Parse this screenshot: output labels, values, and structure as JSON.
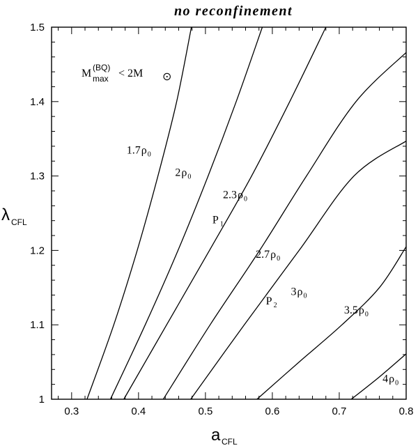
{
  "chart_data": {
    "type": "line",
    "title": "no reconfinement",
    "xlabel": {
      "main": "a",
      "sub": "CFL"
    },
    "ylabel": {
      "main": "λ",
      "sub": "CFL"
    },
    "xlim": [
      0.27,
      0.8
    ],
    "ylim": [
      1.0,
      1.5
    ],
    "xticks": [
      "0.3",
      "0.4",
      "0.5",
      "0.6",
      "0.7",
      "0.8"
    ],
    "yticks": [
      "1",
      "1.1",
      "1.2",
      "1.3",
      "1.4",
      "1.5"
    ],
    "grid": false,
    "legend": "none",
    "series": [
      {
        "label": {
          "coef": "1.7",
          "x": 0.403,
          "y": 1.33
        },
        "points": [
          [
            0.323,
            1.0
          ],
          [
            0.363,
            1.1
          ],
          [
            0.398,
            1.2
          ],
          [
            0.429,
            1.3
          ],
          [
            0.457,
            1.4
          ],
          [
            0.479,
            1.5
          ]
        ]
      },
      {
        "label": {
          "coef": "2",
          "x": 0.463,
          "y": 1.3
        },
        "points": [
          [
            0.358,
            1.0
          ],
          [
            0.41,
            1.1
          ],
          [
            0.459,
            1.2
          ],
          [
            0.504,
            1.3
          ],
          [
            0.546,
            1.4
          ],
          [
            0.585,
            1.5
          ]
        ]
      },
      {
        "label": {
          "coef": "2.3",
          "x": 0.547,
          "y": 1.27
        },
        "points": [
          [
            0.378,
            1.0
          ],
          [
            0.442,
            1.1
          ],
          [
            0.506,
            1.2
          ],
          [
            0.569,
            1.3
          ],
          [
            0.626,
            1.4
          ],
          [
            0.68,
            1.5
          ]
        ]
      },
      {
        "label": {
          "coef": "2.7",
          "x": 0.596,
          "y": 1.19
        },
        "points": [
          [
            0.437,
            1.0
          ],
          [
            0.507,
            1.1
          ],
          [
            0.581,
            1.2
          ],
          [
            0.651,
            1.3
          ],
          [
            0.725,
            1.4
          ],
          [
            0.8,
            1.466
          ]
        ]
      },
      {
        "label": {
          "coef": "3",
          "x": 0.636,
          "y": 1.14
        },
        "points": [
          [
            0.478,
            1.0
          ],
          [
            0.558,
            1.1
          ],
          [
            0.64,
            1.2
          ],
          [
            0.722,
            1.3
          ],
          [
            0.8,
            1.347
          ]
        ]
      },
      {
        "label": {
          "coef": "3.5",
          "x": 0.728,
          "y": 1.115
        },
        "points": [
          [
            0.577,
            1.0
          ],
          [
            0.64,
            1.05
          ],
          [
            0.704,
            1.1
          ],
          [
            0.76,
            1.15
          ],
          [
            0.8,
            1.205
          ]
        ]
      },
      {
        "label": {
          "coef": "4",
          "x": 0.773,
          "y": 1.023
        },
        "points": [
          [
            0.718,
            1.0
          ],
          [
            0.76,
            1.03
          ],
          [
            0.8,
            1.061
          ]
        ]
      }
    ],
    "density_symbol": "ρ",
    "density_subscript": "0",
    "points_marked": [
      {
        "name": "P",
        "sub": "1",
        "x": 0.527,
        "y": 1.242
      },
      {
        "name": "P",
        "sub": "2",
        "x": 0.607,
        "y": 1.133
      }
    ],
    "annotation": {
      "M": "M",
      "sup": "(BQ)",
      "sub": "max",
      "rest": " < 2M",
      "sun": "⊙"
    }
  }
}
